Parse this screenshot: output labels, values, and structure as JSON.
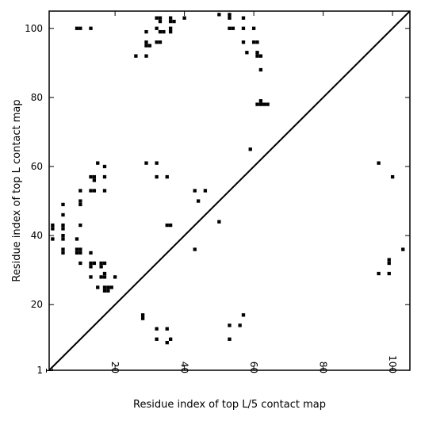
{
  "chart_data": {
    "type": "scatter",
    "title": "",
    "xlabel": "Residue index of top L/5 contact map",
    "ylabel": "Residue index of top L contact map",
    "xlim": [
      1,
      105
    ],
    "ylim": [
      1,
      105
    ],
    "x_ticks": [
      1,
      20,
      40,
      60,
      80,
      100
    ],
    "y_ticks": [
      1,
      20,
      40,
      60,
      80,
      100
    ],
    "x_tick_labels": [
      "1",
      "20",
      "40",
      "60",
      "80",
      "100"
    ],
    "y_tick_labels": [
      "1",
      "20",
      "40",
      "60",
      "80",
      "100"
    ],
    "x_tick_rotation": -90,
    "grid": false,
    "diagonal": [
      [
        1,
        1
      ],
      [
        105,
        105
      ]
    ],
    "marker": "square",
    "colors": {
      "marker": "#000000",
      "axes": "#000000",
      "background": "#ffffff"
    },
    "series": [
      {
        "points": [
          [
            9,
            100
          ],
          [
            10,
            100
          ],
          [
            13,
            100
          ],
          [
            32,
            103
          ],
          [
            33,
            103
          ],
          [
            33,
            102
          ],
          [
            36,
            103
          ],
          [
            36,
            102
          ],
          [
            37,
            102
          ],
          [
            40,
            103
          ],
          [
            50,
            104
          ],
          [
            53,
            104
          ],
          [
            53,
            103
          ],
          [
            57,
            103
          ],
          [
            32,
            100
          ],
          [
            33,
            99
          ],
          [
            34,
            99
          ],
          [
            36,
            100
          ],
          [
            36,
            99
          ],
          [
            29,
            99
          ],
          [
            53,
            100
          ],
          [
            54,
            100
          ],
          [
            57,
            100
          ],
          [
            60,
            100
          ],
          [
            29,
            96
          ],
          [
            29,
            95
          ],
          [
            30,
            95
          ],
          [
            32,
            96
          ],
          [
            33,
            96
          ],
          [
            57,
            96
          ],
          [
            60,
            96
          ],
          [
            61,
            96
          ],
          [
            58,
            93
          ],
          [
            61,
            93
          ],
          [
            61,
            92
          ],
          [
            62,
            92
          ],
          [
            26,
            92
          ],
          [
            29,
            92
          ],
          [
            62,
            88
          ],
          [
            62,
            79
          ],
          [
            61,
            78
          ],
          [
            62,
            78
          ],
          [
            63,
            78
          ],
          [
            64,
            78
          ],
          [
            59,
            65
          ],
          [
            15,
            61
          ],
          [
            17,
            60
          ],
          [
            29,
            61
          ],
          [
            32,
            61
          ],
          [
            13,
            57
          ],
          [
            14,
            57
          ],
          [
            14,
            56
          ],
          [
            17,
            57
          ],
          [
            32,
            57
          ],
          [
            35,
            57
          ],
          [
            10,
            53
          ],
          [
            13,
            53
          ],
          [
            14,
            53
          ],
          [
            17,
            53
          ],
          [
            43,
            53
          ],
          [
            46,
            53
          ],
          [
            10,
            50
          ],
          [
            10,
            49
          ],
          [
            44,
            50
          ],
          [
            5,
            49
          ],
          [
            5,
            46
          ],
          [
            2,
            43
          ],
          [
            2,
            42
          ],
          [
            5,
            43
          ],
          [
            5,
            42
          ],
          [
            10,
            43
          ],
          [
            35,
            43
          ],
          [
            36,
            43
          ],
          [
            2,
            39
          ],
          [
            5,
            40
          ],
          [
            5,
            39
          ],
          [
            9,
            39
          ],
          [
            50,
            44
          ],
          [
            5,
            36
          ],
          [
            5,
            35
          ],
          [
            9,
            36
          ],
          [
            9,
            35
          ],
          [
            10,
            36
          ],
          [
            10,
            35
          ],
          [
            13,
            35
          ],
          [
            43,
            36
          ],
          [
            10,
            32
          ],
          [
            13,
            32
          ],
          [
            14,
            32
          ],
          [
            13,
            31
          ],
          [
            16,
            32
          ],
          [
            17,
            32
          ],
          [
            16,
            31
          ],
          [
            13,
            28
          ],
          [
            16,
            28
          ],
          [
            17,
            28
          ],
          [
            17,
            29
          ],
          [
            20,
            28
          ],
          [
            15,
            25
          ],
          [
            17,
            25
          ],
          [
            18,
            25
          ],
          [
            19,
            25
          ],
          [
            17,
            24
          ],
          [
            18,
            24
          ],
          [
            28,
            17
          ],
          [
            28,
            16
          ],
          [
            57,
            17
          ],
          [
            32,
            13
          ],
          [
            35,
            13
          ],
          [
            53,
            14
          ],
          [
            56,
            14
          ],
          [
            32,
            10
          ],
          [
            35,
            9
          ],
          [
            36,
            10
          ],
          [
            53,
            10
          ],
          [
            96,
            61
          ],
          [
            100,
            57
          ],
          [
            96,
            29
          ],
          [
            99,
            29
          ],
          [
            99,
            33
          ],
          [
            99,
            32
          ],
          [
            103,
            36
          ]
        ]
      }
    ]
  }
}
